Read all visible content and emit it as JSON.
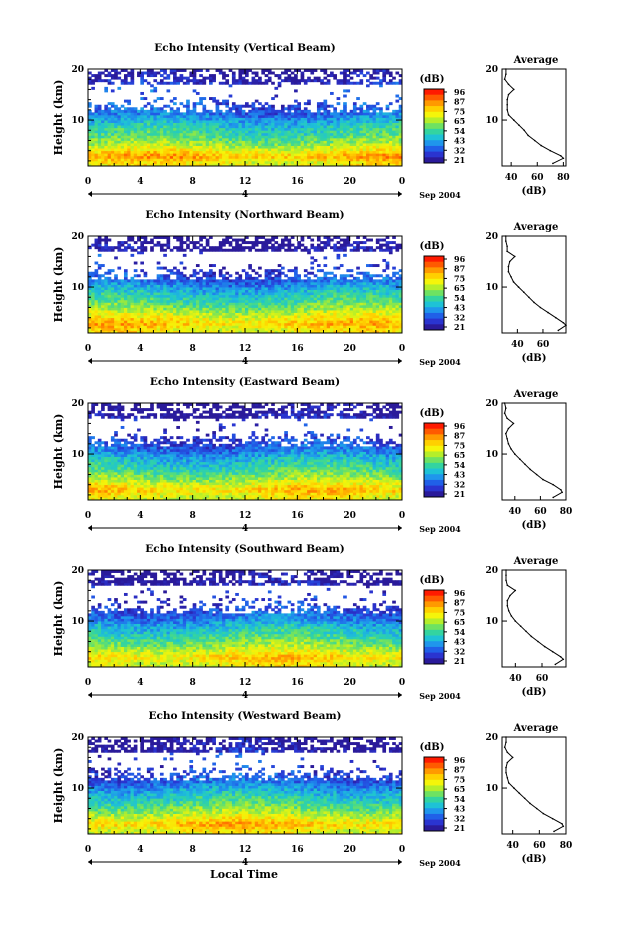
{
  "footer": {
    "xlabel": "Local Time"
  },
  "colorbar": {
    "label": "(dB)",
    "ticks": [
      "96",
      "87",
      "75",
      "65",
      "54",
      "43",
      "32",
      "21"
    ],
    "colors": [
      "#ff1a00",
      "#ff5a00",
      "#ff9a00",
      "#ffd000",
      "#f5f50a",
      "#b5ee2a",
      "#6ee262",
      "#33d4a0",
      "#1ec2d6",
      "#1f96ec",
      "#2060e8",
      "#2a34d0",
      "#2a1a9a"
    ]
  },
  "chart_data": [
    {
      "type": "heatmap",
      "title": "Echo Intensity (Vertical Beam)",
      "ylabel": "Height (km)",
      "x_ticks": [
        "0",
        "4",
        "8",
        "12",
        "16",
        "20",
        "0"
      ],
      "y_ticks": [
        "20",
        "10"
      ],
      "day_label": "4",
      "month_label": "Sep 2004",
      "xlim": [
        0,
        24
      ],
      "ylim": [
        1,
        20
      ],
      "clim": [
        21,
        96
      ],
      "average": {
        "title": "Average",
        "xlabel": "(dB)",
        "x_ticks": [
          "40",
          "60",
          "80"
        ],
        "y_ticks": [
          "20",
          "10"
        ],
        "xlim": [
          33,
          82
        ],
        "height_km": [
          1.5,
          2.5,
          3,
          4,
          5,
          6,
          7,
          8,
          9,
          10,
          11,
          12,
          13,
          14,
          15,
          16,
          17,
          18,
          19,
          20
        ],
        "db": [
          72,
          80,
          78,
          70,
          63,
          58,
          53,
          50,
          46,
          42,
          38,
          37,
          37,
          37,
          38,
          42,
          38,
          35,
          36,
          36
        ]
      }
    },
    {
      "type": "heatmap",
      "title": "Echo Intensity (Northward Beam)",
      "ylabel": "Height (km)",
      "x_ticks": [
        "0",
        "4",
        "8",
        "12",
        "16",
        "20",
        "0"
      ],
      "y_ticks": [
        "20",
        "10"
      ],
      "day_label": "4",
      "month_label": "Sep 2004",
      "xlim": [
        0,
        24
      ],
      "ylim": [
        1,
        20
      ],
      "clim": [
        21,
        96
      ],
      "average": {
        "title": "Average",
        "xlabel": "(dB)",
        "x_ticks": [
          "40",
          "60"
        ],
        "y_ticks": [
          "20",
          "10"
        ],
        "xlim": [
          28,
          78
        ],
        "height_km": [
          1.5,
          2.5,
          3,
          4,
          5,
          6,
          7,
          8,
          9,
          10,
          11,
          12,
          13,
          14,
          15,
          16,
          17,
          18,
          19,
          20
        ],
        "db": [
          72,
          78,
          76,
          70,
          64,
          58,
          53,
          49,
          45,
          41,
          37,
          35,
          33,
          33,
          34,
          38,
          32,
          32,
          31,
          31
        ]
      }
    },
    {
      "type": "heatmap",
      "title": "Echo Intensity (Eastward Beam)",
      "ylabel": "Height (km)",
      "x_ticks": [
        "0",
        "4",
        "8",
        "12",
        "16",
        "20",
        "0"
      ],
      "y_ticks": [
        "20",
        "10"
      ],
      "day_label": "4",
      "month_label": "Sep 2004",
      "xlim": [
        0,
        24
      ],
      "ylim": [
        1,
        20
      ],
      "clim": [
        21,
        96
      ],
      "average": {
        "title": "Average",
        "xlabel": "(dB)",
        "x_ticks": [
          "40",
          "60",
          "80"
        ],
        "y_ticks": [
          "20",
          "10"
        ],
        "xlim": [
          30,
          80
        ],
        "height_km": [
          1.5,
          2.5,
          3,
          4,
          5,
          6,
          7,
          8,
          9,
          10,
          11,
          12,
          13,
          14,
          15,
          16,
          17,
          18,
          19,
          20
        ],
        "db": [
          70,
          77,
          76,
          70,
          62,
          57,
          52,
          48,
          44,
          40,
          37,
          35,
          34,
          33,
          35,
          39,
          34,
          32,
          33,
          32
        ]
      }
    },
    {
      "type": "heatmap",
      "title": "Echo Intensity (Southward Beam)",
      "ylabel": "Height (km)",
      "x_ticks": [
        "0",
        "4",
        "8",
        "12",
        "16",
        "20",
        "0"
      ],
      "y_ticks": [
        "20",
        "10"
      ],
      "day_label": "4",
      "month_label": "Sep 2004",
      "xlim": [
        0,
        24
      ],
      "ylim": [
        1,
        20
      ],
      "clim": [
        21,
        96
      ],
      "average": {
        "title": "Average",
        "xlabel": "(dB)",
        "x_ticks": [
          "40",
          "60"
        ],
        "y_ticks": [
          "20",
          "10"
        ],
        "xlim": [
          30,
          78
        ],
        "height_km": [
          1.5,
          2.5,
          3,
          4,
          5,
          6,
          7,
          8,
          9,
          10,
          11,
          12,
          13,
          14,
          15,
          16,
          17,
          18,
          19,
          20
        ],
        "db": [
          70,
          76,
          74,
          68,
          62,
          57,
          52,
          48,
          44,
          40,
          37,
          35,
          34,
          34,
          36,
          40,
          34,
          33,
          33,
          33
        ]
      }
    },
    {
      "type": "heatmap",
      "title": "Echo Intensity (Westward Beam)",
      "ylabel": "Height (km)",
      "x_ticks": [
        "0",
        "4",
        "8",
        "12",
        "16",
        "20",
        "0"
      ],
      "y_ticks": [
        "20",
        "10"
      ],
      "day_label": "4",
      "month_label": "Sep 2004",
      "xlim": [
        0,
        24
      ],
      "ylim": [
        1,
        20
      ],
      "clim": [
        21,
        96
      ],
      "average": {
        "title": "Average",
        "xlabel": "(dB)",
        "x_ticks": [
          "40",
          "60",
          "80"
        ],
        "y_ticks": [
          "20",
          "10"
        ],
        "xlim": [
          32,
          80
        ],
        "height_km": [
          1.5,
          2.5,
          3,
          4,
          5,
          6,
          7,
          8,
          9,
          10,
          11,
          12,
          13,
          14,
          15,
          16,
          17,
          18,
          19,
          20
        ],
        "db": [
          71,
          78,
          77,
          70,
          63,
          58,
          53,
          49,
          45,
          41,
          37,
          36,
          35,
          35,
          36,
          40,
          36,
          34,
          35,
          35
        ]
      }
    }
  ]
}
